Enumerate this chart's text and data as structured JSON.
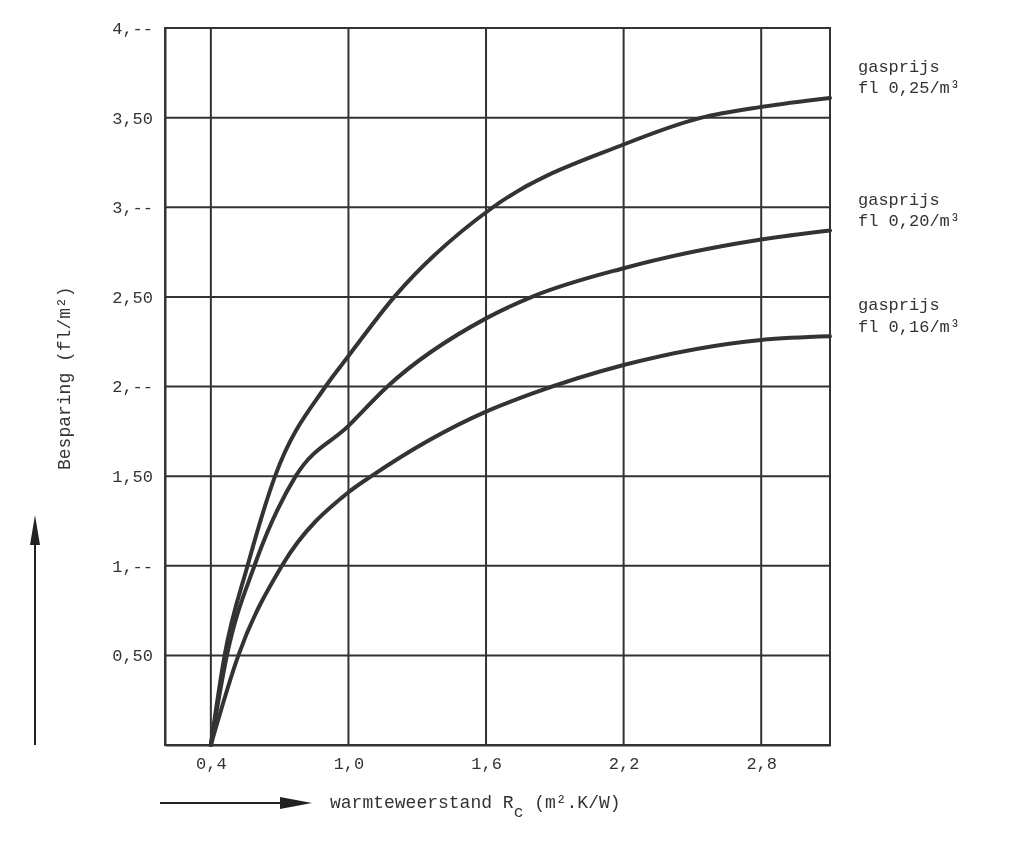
{
  "chart_data": {
    "type": "line",
    "xlabel": "warmteweerstand R$_{c}$ (m².K/W)",
    "ylabel": "Besparing (fl/m²)",
    "xlim": [
      0.2,
      3.1
    ],
    "ylim": [
      0,
      4
    ],
    "xticks": [
      {
        "value": 0.4,
        "label": "0,4"
      },
      {
        "value": 1.0,
        "label": "1,0"
      },
      {
        "value": 1.6,
        "label": "1,6"
      },
      {
        "value": 2.2,
        "label": "2,2"
      },
      {
        "value": 2.8,
        "label": "2,8"
      }
    ],
    "yticks": [
      {
        "value": 0.5,
        "label": "0,50"
      },
      {
        "value": 1,
        "label": "1,--"
      },
      {
        "value": 1.5,
        "label": "1,50"
      },
      {
        "value": 2,
        "label": "2,--"
      },
      {
        "value": 2.5,
        "label": "2,50"
      },
      {
        "value": 3,
        "label": "3,--"
      },
      {
        "value": 3.5,
        "label": "3,50"
      },
      {
        "value": 4,
        "label": "4,--"
      }
    ],
    "grid": true,
    "marker": "none",
    "line_style": "solid",
    "series": [
      {
        "name": "gasprijs fl 0,25/m³",
        "color": "#333333",
        "x": [
          0.4,
          0.46,
          0.56,
          0.68,
          0.9,
          1.0,
          1.2,
          1.63,
          2.2,
          2.54,
          2.8,
          3.1
        ],
        "values": [
          0,
          0.5,
          1.0,
          1.5,
          2.0,
          2.17,
          2.5,
          3.0,
          3.35,
          3.5,
          3.56,
          3.61
        ]
      },
      {
        "name": "gasprijs fl 0,20/m³",
        "color": "#333333",
        "x": [
          0.4,
          0.47,
          0.59,
          0.77,
          1.0,
          1.17,
          1.6,
          1.8,
          2.2,
          2.8,
          3.1
        ],
        "values": [
          0,
          0.5,
          1.0,
          1.5,
          1.78,
          2.0,
          2.38,
          2.5,
          2.66,
          2.82,
          2.87
        ]
      },
      {
        "name": "gasprijs fl 0,16/m³",
        "color": "#333333",
        "x": [
          0.4,
          0.52,
          0.71,
          1.0,
          1.1,
          1.6,
          1.8,
          2.2,
          2.8,
          3.1
        ],
        "values": [
          0,
          0.5,
          1.0,
          1.41,
          1.5,
          1.86,
          1.96,
          2.12,
          2.26,
          2.28
        ]
      }
    ]
  }
}
